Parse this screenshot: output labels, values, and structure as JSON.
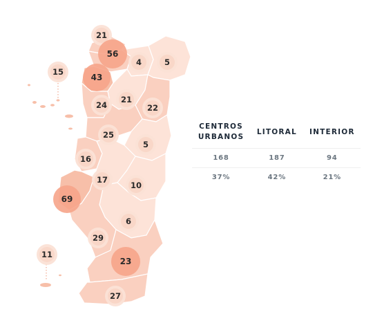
{
  "map": {
    "fill_light": "#fde3d8",
    "fill_mid": "#fad0c0",
    "fill_dark": "#f7bfa9",
    "bubble_color": "#f6a489",
    "bubble_halo_color": "#fbe1d6",
    "districts": [
      {
        "id": "viana-do-castelo",
        "value": "21"
      },
      {
        "id": "braga",
        "value": "56"
      },
      {
        "id": "vila-real",
        "value": "4"
      },
      {
        "id": "braganca",
        "value": "5"
      },
      {
        "id": "porto",
        "value": "43"
      },
      {
        "id": "acores",
        "value": "15"
      },
      {
        "id": "aveiro",
        "value": "24"
      },
      {
        "id": "viseu",
        "value": "21"
      },
      {
        "id": "guarda",
        "value": "22"
      },
      {
        "id": "coimbra",
        "value": "25"
      },
      {
        "id": "castelo-branco",
        "value": "5"
      },
      {
        "id": "leiria",
        "value": "16"
      },
      {
        "id": "santarem",
        "value": "17"
      },
      {
        "id": "portalegre",
        "value": "10"
      },
      {
        "id": "lisboa",
        "value": "69"
      },
      {
        "id": "evora",
        "value": "6"
      },
      {
        "id": "setubal",
        "value": "29"
      },
      {
        "id": "beja",
        "value": "23"
      },
      {
        "id": "madeira",
        "value": "11"
      },
      {
        "id": "faro",
        "value": "27"
      }
    ]
  },
  "stats": {
    "headers": [
      "CENTROS URBANOS",
      "LITORAL",
      "INTERIOR"
    ],
    "header_lines": [
      [
        "CENTROS",
        "URBANOS"
      ],
      [
        "LITORAL"
      ],
      [
        "INTERIOR"
      ]
    ],
    "rows": [
      [
        "168",
        "187",
        "94"
      ],
      [
        "37%",
        "42%",
        "21%"
      ]
    ]
  }
}
